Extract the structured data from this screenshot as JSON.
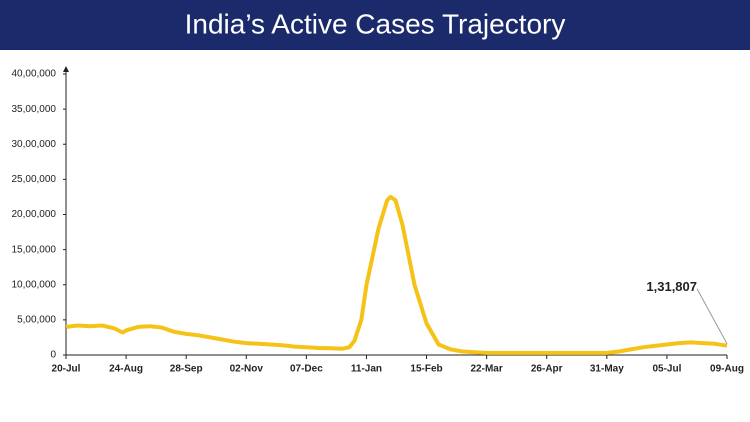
{
  "chart_data": {
    "type": "line",
    "title": "India’s Active Cases Trajectory",
    "x": [
      0,
      7,
      14,
      21,
      28,
      33,
      35,
      42,
      49,
      56,
      63,
      70,
      77,
      84,
      91,
      98,
      105,
      112,
      119,
      126,
      133,
      140,
      147,
      154,
      161,
      165,
      168,
      172,
      175,
      182,
      187,
      189,
      192,
      196,
      203,
      210,
      217,
      224,
      231,
      238,
      245,
      252,
      259,
      266,
      273,
      280,
      287,
      294,
      301,
      308,
      315,
      322,
      329,
      336,
      343,
      350,
      357,
      364,
      371,
      378,
      385
    ],
    "xlim": [
      0,
      385
    ],
    "xticks": [
      {
        "value": 0,
        "label": "20-Jul"
      },
      {
        "value": 35,
        "label": "24-Aug"
      },
      {
        "value": 70,
        "label": "28-Sep"
      },
      {
        "value": 105,
        "label": "02-Nov"
      },
      {
        "value": 140,
        "label": "07-Dec"
      },
      {
        "value": 175,
        "label": "11-Jan"
      },
      {
        "value": 210,
        "label": "15-Feb"
      },
      {
        "value": 245,
        "label": "22-Mar"
      },
      {
        "value": 280,
        "label": "26-Apr"
      },
      {
        "value": 315,
        "label": "31-May"
      },
      {
        "value": 350,
        "label": "05-Jul"
      },
      {
        "value": 385,
        "label": "09-Aug"
      }
    ],
    "ylim": [
      0,
      4000000
    ],
    "yticks": [
      0,
      {
        "value": 500000,
        "label": "5,00,000"
      },
      {
        "value": 1000000,
        "label": "10,00,000"
      },
      {
        "value": 1500000,
        "label": "15,00,000"
      },
      {
        "value": 2000000,
        "label": "20,00,000"
      },
      {
        "value": 2500000,
        "label": "25,00,000"
      },
      {
        "value": 3000000,
        "label": "30,00,000"
      },
      {
        "value": 3500000,
        "label": "35,00,000"
      },
      {
        "value": 4000000,
        "label": "40,00,000"
      }
    ],
    "series": [
      {
        "color": "#f5c317",
        "values": [
          400000,
          420000,
          410000,
          420000,
          380000,
          320000,
          350000,
          400000,
          410000,
          390000,
          330000,
          300000,
          280000,
          250000,
          220000,
          190000,
          170000,
          160000,
          150000,
          140000,
          120000,
          110000,
          100000,
          95000,
          90000,
          110000,
          200000,
          500000,
          1000000,
          1800000,
          2200000,
          2250000,
          2200000,
          1850000,
          1000000,
          450000,
          150000,
          80000,
          50000,
          40000,
          30000,
          30000,
          30000,
          30000,
          30000,
          30000,
          30000,
          30000,
          30000,
          30000,
          30000,
          50000,
          80000,
          110000,
          130000,
          150000,
          170000,
          180000,
          170000,
          160000,
          131807
        ],
        "value_labels": [
          null,
          null,
          null,
          null,
          null,
          null,
          null,
          null,
          null,
          null,
          null,
          null,
          null,
          null,
          null,
          null,
          null,
          null,
          null,
          null,
          null,
          null,
          null,
          null,
          null,
          null,
          null,
          null,
          null,
          null,
          null,
          null,
          null,
          null,
          null,
          null,
          null,
          null,
          null,
          null,
          null,
          null,
          null,
          null,
          null,
          null,
          null,
          null,
          null,
          null,
          null,
          null,
          null,
          null,
          null,
          null,
          null,
          null,
          null,
          null,
          "1,31,807"
        ]
      }
    ]
  }
}
